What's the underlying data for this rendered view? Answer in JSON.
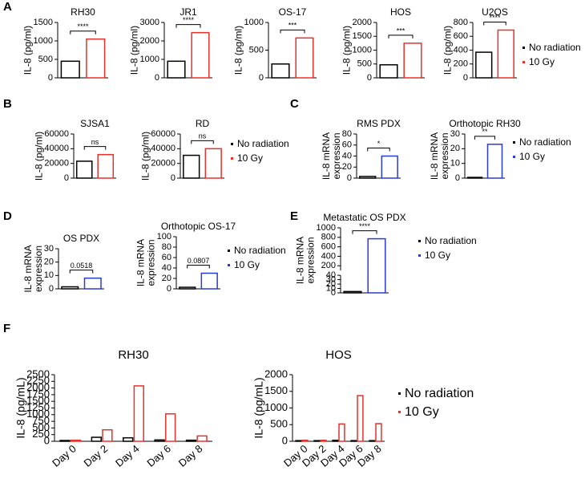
{
  "panel_labels": [
    "A",
    "B",
    "C",
    "D",
    "E",
    "F"
  ],
  "chart_data": [
    {
      "type": "bar",
      "title": "RH30",
      "ylabel": [
        "IL-8 (pg/ml)"
      ],
      "annotation": "****",
      "ylim": [
        0,
        1500
      ],
      "yticks": [
        0,
        500,
        1000,
        1500
      ],
      "series": [
        {
          "name": "No radiation",
          "color": "#000000",
          "values": [
            450
          ]
        },
        {
          "name": "10 Gy",
          "color": "#e8312a",
          "values": [
            1050
          ]
        }
      ]
    },
    {
      "type": "bar",
      "title": "JR1",
      "ylabel": [
        "IL-8 (pg/ml)"
      ],
      "annotation": "****",
      "ylim": [
        0,
        3000
      ],
      "yticks": [
        0,
        1000,
        2000,
        3000
      ],
      "series": [
        {
          "name": "No radiation",
          "color": "#000000",
          "values": [
            900
          ]
        },
        {
          "name": "10 Gy",
          "color": "#e8312a",
          "values": [
            2450
          ]
        }
      ]
    },
    {
      "type": "bar",
      "title": "OS-17",
      "ylabel": [
        "IL-8 (pg/ml)"
      ],
      "annotation": "***",
      "ylim": [
        0,
        1000
      ],
      "yticks": [
        0,
        500,
        1000
      ],
      "series": [
        {
          "name": "No radiation",
          "color": "#000000",
          "values": [
            250
          ]
        },
        {
          "name": "10 Gy",
          "color": "#e8312a",
          "values": [
            720
          ]
        }
      ]
    },
    {
      "type": "bar",
      "title": "HOS",
      "ylabel": [
        "IL-8 (pg/ml)"
      ],
      "annotation": "***",
      "ylim": [
        0,
        2000
      ],
      "yticks": [
        0,
        500,
        1000,
        1500,
        2000
      ],
      "series": [
        {
          "name": "No radiation",
          "color": "#000000",
          "values": [
            470
          ]
        },
        {
          "name": "10 Gy",
          "color": "#e8312a",
          "values": [
            1250
          ]
        }
      ]
    },
    {
      "type": "bar",
      "title": "U2OS",
      "ylabel": [
        "IL-8 (pg/ml)"
      ],
      "annotation": "****",
      "ylim": [
        0,
        800
      ],
      "yticks": [
        0,
        200,
        400,
        600,
        800
      ],
      "legend": true,
      "series": [
        {
          "name": "No radiation",
          "color": "#000000",
          "values": [
            370
          ]
        },
        {
          "name": "10 Gy",
          "color": "#e8312a",
          "values": [
            690
          ]
        }
      ]
    },
    {
      "type": "bar",
      "title": "SJSA1",
      "ylabel": [
        "IL-8 (pg/ml)"
      ],
      "annotation": "ns",
      "ylim": [
        0,
        60000
      ],
      "yticks": [
        0,
        20000,
        40000,
        60000
      ],
      "series": [
        {
          "name": "No radiation",
          "color": "#000000",
          "values": [
            23000
          ]
        },
        {
          "name": "10 Gy",
          "color": "#e8312a",
          "values": [
            32000
          ]
        }
      ]
    },
    {
      "type": "bar",
      "title": "RD",
      "ylabel": [
        "IL-8 (pg/ml)"
      ],
      "annotation": "ns",
      "ylim": [
        0,
        60000
      ],
      "yticks": [
        0,
        20000,
        40000,
        60000
      ],
      "legend": true,
      "series": [
        {
          "name": "No radiation",
          "color": "#000000",
          "values": [
            31000
          ]
        },
        {
          "name": "10 Gy",
          "color": "#e8312a",
          "values": [
            40000
          ]
        }
      ]
    },
    {
      "type": "bar",
      "title": "RMS PDX",
      "ylabel": [
        "IL-8 mRNA",
        "expression"
      ],
      "annotation": "*",
      "ylim": [
        0,
        80
      ],
      "yticks": [
        0,
        20,
        40,
        60,
        80
      ],
      "series": [
        {
          "name": "No radiation",
          "color": "#000000",
          "values": [
            3
          ]
        },
        {
          "name": "10 Gy",
          "color": "#2a3bd6",
          "values": [
            40
          ]
        }
      ]
    },
    {
      "type": "bar",
      "title": "Orthotopic RH30",
      "ylabel": [
        "IL-8 mRNA",
        "expression"
      ],
      "annotation": "**",
      "ylim": [
        0,
        30
      ],
      "yticks": [
        0,
        10,
        20,
        30
      ],
      "legend": true,
      "series": [
        {
          "name": "No radiation",
          "color": "#000000",
          "values": [
            0.5
          ]
        },
        {
          "name": "10 Gy",
          "color": "#2a3bd6",
          "values": [
            23
          ]
        }
      ]
    },
    {
      "type": "bar",
      "title": "OS PDX",
      "ylabel": [
        "IL-8 mRNA",
        "expression"
      ],
      "annotation": "0.0518",
      "ylim": [
        0,
        30
      ],
      "yticks": [
        0,
        10,
        20,
        30
      ],
      "series": [
        {
          "name": "No radiation",
          "color": "#000000",
          "values": [
            1.5
          ]
        },
        {
          "name": "10 Gy",
          "color": "#2a3bd6",
          "values": [
            8
          ]
        }
      ]
    },
    {
      "type": "bar",
      "title": "Orthotopic OS-17",
      "ylabel": [
        "IL-8 mRNA",
        "expression"
      ],
      "annotation": "0.0807",
      "ylim": [
        0,
        100
      ],
      "yticks": [
        0,
        20,
        40,
        60,
        80,
        100
      ],
      "legend": true,
      "series": [
        {
          "name": "No radiation",
          "color": "#000000",
          "values": [
            3
          ]
        },
        {
          "name": "10 Gy",
          "color": "#2a3bd6",
          "values": [
            30
          ]
        }
      ]
    },
    {
      "type": "bar",
      "title": "Metastatic OS PDX",
      "ylabel": [
        "IL-8 mRNA",
        "expression"
      ],
      "annotation": "****",
      "ylim": [
        0,
        1000
      ],
      "yticks": [
        0,
        10,
        20,
        30,
        40,
        200,
        400,
        600,
        800,
        1000
      ],
      "broken_axis": true,
      "legend": true,
      "series": [
        {
          "name": "No radiation",
          "color": "#000000",
          "values": [
            3
          ]
        },
        {
          "name": "10 Gy",
          "color": "#2a3bd6",
          "values": [
            770
          ]
        }
      ]
    },
    {
      "type": "bar",
      "title": "RH30",
      "ylabel": [
        "IL-8 (pg/mL)"
      ],
      "categories": [
        "Day 0",
        "Day 2",
        "Day 4",
        "Day 6",
        "Day 8"
      ],
      "ylim": [
        0,
        2500
      ],
      "yticks": [
        0,
        250,
        500,
        750,
        1000,
        1250,
        1500,
        1750,
        2000,
        2250,
        2500
      ],
      "series": [
        {
          "name": "No radiation",
          "color": "#000000",
          "values": [
            30,
            150,
            130,
            50,
            40
          ]
        },
        {
          "name": "10 Gy",
          "color": "#e8312a",
          "values": [
            40,
            430,
            2080,
            1030,
            200
          ]
        }
      ]
    },
    {
      "type": "bar",
      "title": "HOS",
      "ylabel": [
        "IL-8 (pg/mL)"
      ],
      "categories": [
        "Day 0",
        "Day 2",
        "Day 4",
        "Day 6",
        "Day 8"
      ],
      "ylim": [
        0,
        2000
      ],
      "yticks": [
        0,
        500,
        1000,
        1500,
        2000
      ],
      "legend": true,
      "series": [
        {
          "name": "No radiation",
          "color": "#000000",
          "values": [
            20,
            20,
            30,
            20,
            20
          ]
        },
        {
          "name": "10 Gy",
          "color": "#e8312a",
          "values": [
            30,
            30,
            520,
            1370,
            530
          ]
        }
      ]
    }
  ]
}
